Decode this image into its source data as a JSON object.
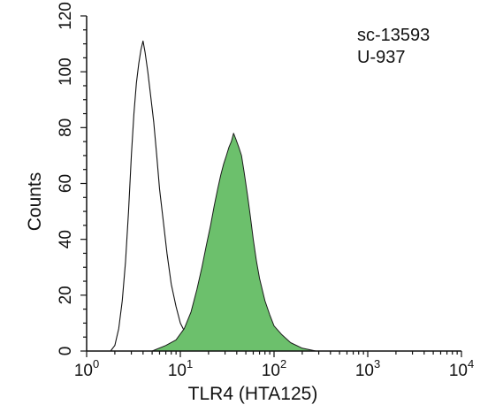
{
  "chart_data": {
    "type": "area",
    "xlabel": "TLR4 (HTA125)",
    "ylabel": "Counts",
    "x_scale": "log",
    "xlim": [
      1,
      10000
    ],
    "ylim": [
      0,
      120
    ],
    "x_ticks": [
      {
        "value": 1,
        "base": "10",
        "exp": "0"
      },
      {
        "value": 10,
        "base": "10",
        "exp": "1"
      },
      {
        "value": 100,
        "base": "10",
        "exp": "2"
      },
      {
        "value": 1000,
        "base": "10",
        "exp": "3"
      },
      {
        "value": 10000,
        "base": "10",
        "exp": "4"
      }
    ],
    "y_ticks": [
      "0",
      "20",
      "40",
      "60",
      "80",
      "100",
      "120"
    ],
    "annotations": [
      "sc-13593",
      "U-937"
    ],
    "colors": {
      "filled": "#6cc06c",
      "outline": "#111111"
    },
    "series": [
      {
        "style": "outline",
        "x": [
          1.8,
          2.0,
          2.2,
          2.4,
          2.6,
          2.8,
          3.0,
          3.2,
          3.4,
          3.6,
          3.8,
          4.0,
          4.2,
          4.5,
          4.8,
          5.2,
          5.6,
          6.0,
          6.6,
          7.2,
          8.0,
          9.0,
          10.0,
          11.5,
          13.0,
          16.0,
          20.0,
          30.0,
          50.0,
          100.0,
          200.0,
          250.0
        ],
        "values": [
          0,
          2,
          8,
          18,
          32,
          50,
          70,
          85,
          96,
          103,
          108,
          111,
          107,
          100,
          92,
          82,
          70,
          58,
          46,
          35,
          24,
          16,
          10,
          6,
          4,
          3,
          2,
          2,
          1,
          1,
          0,
          0
        ]
      },
      {
        "style": "filled",
        "x": [
          5.0,
          7.0,
          9.0,
          11.0,
          13.0,
          15.0,
          17.0,
          19.0,
          21.0,
          23.0,
          25.0,
          27.0,
          29.0,
          31.0,
          33.0,
          35.0,
          37.0,
          39.0,
          42.0,
          45.0,
          48.0,
          52.0,
          56.0,
          60.0,
          65.0,
          70.0,
          80.0,
          90.0,
          100.0,
          120.0,
          150.0,
          200.0,
          280.0
        ],
        "values": [
          0,
          2,
          4,
          8,
          14,
          22,
          30,
          38,
          45,
          52,
          58,
          63,
          67,
          70,
          73,
          75,
          78,
          76,
          73,
          70,
          64,
          56,
          48,
          40,
          32,
          26,
          18,
          13,
          9,
          6,
          3,
          1,
          0
        ]
      }
    ]
  }
}
